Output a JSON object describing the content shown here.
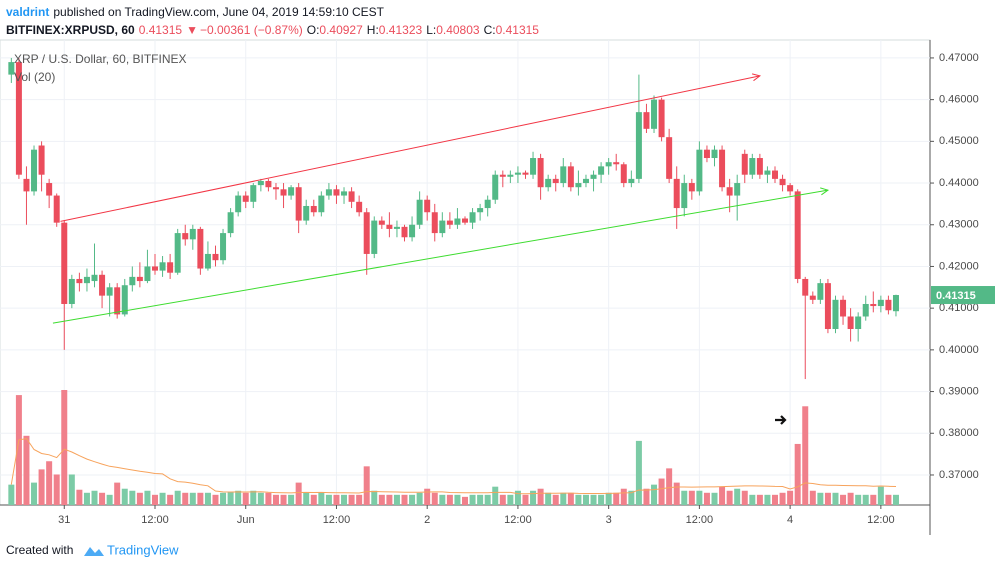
{
  "header": {
    "author": "valdrint",
    "published": "published on TradingView.com, June 04, 2019 14:59:10 CEST",
    "symbol": "BITFINEX:XRPUSD, 60",
    "change_arrow": "▼",
    "change": "−0.00361 (−0.87%)",
    "o_label": "O:",
    "h_label": "H:",
    "l_label": "L:",
    "c_label": "C:"
  },
  "chart_data": {
    "type": "candlestick",
    "title": "XRP / U.S. Dollar, 60, BITFINEX",
    "volume_label": "Vol (20)",
    "up_color": "#53b987",
    "down_color": "#eb4d5c",
    "volume_up_color": "#7ccba6",
    "volume_down_color": "#f0808b",
    "volume_ma_color": "#f7a35c",
    "xlim": [
      -1.5,
      121.5
    ],
    "ylim": [
      0.3628,
      0.4743
    ],
    "grid": true,
    "xticks": [
      {
        "value": 7,
        "label": "31"
      },
      {
        "value": 19,
        "label": "12:00"
      },
      {
        "value": 31,
        "label": "Jun"
      },
      {
        "value": 43,
        "label": "12:00"
      },
      {
        "value": 55,
        "label": "2"
      },
      {
        "value": 67,
        "label": "12:00"
      },
      {
        "value": 79,
        "label": "3"
      },
      {
        "value": 91,
        "label": "12:00"
      },
      {
        "value": 103,
        "label": "4"
      },
      {
        "value": 115,
        "label": "12:00"
      }
    ],
    "yticks": [
      {
        "value": 0.47,
        "label": "0.47000"
      },
      {
        "value": 0.46,
        "label": "0.46000"
      },
      {
        "value": 0.45,
        "label": "0.45000"
      },
      {
        "value": 0.44,
        "label": "0.44000"
      },
      {
        "value": 0.43,
        "label": "0.43000"
      },
      {
        "value": 0.42,
        "label": "0.42000"
      },
      {
        "value": 0.41,
        "label": "0.41000"
      },
      {
        "value": 0.4,
        "label": "0.40000"
      },
      {
        "value": 0.39,
        "label": "0.39000"
      },
      {
        "value": 0.38,
        "label": "0.38000"
      },
      {
        "value": 0.37,
        "label": "0.37000"
      }
    ],
    "candles": [
      [
        0.466,
        0.47,
        0.464,
        0.469,
        20
      ],
      [
        0.469,
        0.47,
        0.441,
        0.442,
        108
      ],
      [
        0.441,
        0.444,
        0.43,
        0.438,
        68
      ],
      [
        0.438,
        0.449,
        0.437,
        0.448,
        22
      ],
      [
        0.449,
        0.45,
        0.438,
        0.442,
        35
      ],
      [
        0.44,
        0.441,
        0.434,
        0.437,
        43
      ],
      [
        0.437,
        0.4375,
        0.4295,
        0.4305,
        30
      ],
      [
        0.4305,
        0.431,
        0.4,
        0.411,
        113
      ],
      [
        0.411,
        0.418,
        0.41,
        0.417,
        30
      ],
      [
        0.417,
        0.4185,
        0.414,
        0.416,
        15
      ],
      [
        0.416,
        0.4195,
        0.414,
        0.4175,
        12
      ],
      [
        0.4165,
        0.4255,
        0.415,
        0.418,
        14
      ],
      [
        0.418,
        0.419,
        0.41,
        0.413,
        12
      ],
      [
        0.413,
        0.416,
        0.408,
        0.415,
        10
      ],
      [
        0.415,
        0.416,
        0.4075,
        0.4085,
        22
      ],
      [
        0.4085,
        0.417,
        0.408,
        0.4155,
        16
      ],
      [
        0.4155,
        0.42,
        0.414,
        0.4175,
        14
      ],
      [
        0.4175,
        0.421,
        0.415,
        0.4165,
        12
      ],
      [
        0.4165,
        0.424,
        0.416,
        0.42,
        14
      ],
      [
        0.42,
        0.423,
        0.418,
        0.419,
        10
      ],
      [
        0.419,
        0.4225,
        0.4175,
        0.421,
        12
      ],
      [
        0.421,
        0.423,
        0.417,
        0.4185,
        10
      ],
      [
        0.4185,
        0.429,
        0.418,
        0.428,
        14
      ],
      [
        0.428,
        0.43,
        0.425,
        0.4265,
        12
      ],
      [
        0.4265,
        0.43,
        0.424,
        0.429,
        12
      ],
      [
        0.429,
        0.4295,
        0.418,
        0.4195,
        12
      ],
      [
        0.4195,
        0.426,
        0.419,
        0.423,
        12
      ],
      [
        0.423,
        0.425,
        0.42,
        0.4215,
        10
      ],
      [
        0.4215,
        0.429,
        0.4205,
        0.428,
        12
      ],
      [
        0.428,
        0.434,
        0.427,
        0.433,
        13
      ],
      [
        0.433,
        0.438,
        0.432,
        0.437,
        14
      ],
      [
        0.437,
        0.438,
        0.434,
        0.4355,
        12
      ],
      [
        0.4355,
        0.44,
        0.434,
        0.4395,
        14
      ],
      [
        0.4395,
        0.441,
        0.438,
        0.4405,
        12
      ],
      [
        0.4405,
        0.441,
        0.438,
        0.439,
        12
      ],
      [
        0.439,
        0.44,
        0.436,
        0.4385,
        10
      ],
      [
        0.4385,
        0.44,
        0.434,
        0.437,
        10
      ],
      [
        0.437,
        0.4395,
        0.436,
        0.439,
        10
      ],
      [
        0.439,
        0.44,
        0.428,
        0.431,
        22
      ],
      [
        0.431,
        0.436,
        0.43,
        0.4345,
        12
      ],
      [
        0.4345,
        0.436,
        0.432,
        0.433,
        10
      ],
      [
        0.433,
        0.438,
        0.432,
        0.437,
        12
      ],
      [
        0.437,
        0.44,
        0.436,
        0.4385,
        10
      ],
      [
        0.4385,
        0.4395,
        0.435,
        0.437,
        10
      ],
      [
        0.437,
        0.439,
        0.435,
        0.438,
        10
      ],
      [
        0.438,
        0.439,
        0.434,
        0.4355,
        10
      ],
      [
        0.4355,
        0.437,
        0.432,
        0.433,
        10
      ],
      [
        0.433,
        0.434,
        0.418,
        0.423,
        38
      ],
      [
        0.423,
        0.432,
        0.422,
        0.431,
        14
      ],
      [
        0.431,
        0.432,
        0.429,
        0.43,
        10
      ],
      [
        0.43,
        0.433,
        0.427,
        0.429,
        10
      ],
      [
        0.429,
        0.431,
        0.427,
        0.4295,
        10
      ],
      [
        0.4295,
        0.43,
        0.426,
        0.427,
        10
      ],
      [
        0.427,
        0.432,
        0.426,
        0.43,
        10
      ],
      [
        0.43,
        0.438,
        0.429,
        0.436,
        12
      ],
      [
        0.436,
        0.437,
        0.431,
        0.433,
        16
      ],
      [
        0.433,
        0.435,
        0.426,
        0.428,
        12
      ],
      [
        0.428,
        0.433,
        0.427,
        0.431,
        10
      ],
      [
        0.431,
        0.433,
        0.429,
        0.43,
        10
      ],
      [
        0.43,
        0.434,
        0.429,
        0.4315,
        10
      ],
      [
        0.4315,
        0.432,
        0.43,
        0.4305,
        8
      ],
      [
        0.4305,
        0.434,
        0.429,
        0.433,
        10
      ],
      [
        0.433,
        0.435,
        0.431,
        0.434,
        10
      ],
      [
        0.434,
        0.437,
        0.432,
        0.436,
        10
      ],
      [
        0.436,
        0.443,
        0.435,
        0.442,
        18
      ],
      [
        0.442,
        0.443,
        0.439,
        0.4415,
        10
      ],
      [
        0.4415,
        0.443,
        0.44,
        0.442,
        10
      ],
      [
        0.442,
        0.444,
        0.44,
        0.4425,
        14
      ],
      [
        0.4425,
        0.443,
        0.441,
        0.442,
        10
      ],
      [
        0.442,
        0.4475,
        0.441,
        0.446,
        14
      ],
      [
        0.446,
        0.447,
        0.436,
        0.439,
        16
      ],
      [
        0.439,
        0.442,
        0.438,
        0.441,
        12
      ],
      [
        0.441,
        0.442,
        0.438,
        0.44,
        10
      ],
      [
        0.44,
        0.446,
        0.439,
        0.444,
        12
      ],
      [
        0.444,
        0.445,
        0.438,
        0.439,
        12
      ],
      [
        0.439,
        0.443,
        0.437,
        0.44,
        10
      ],
      [
        0.44,
        0.442,
        0.439,
        0.441,
        10
      ],
      [
        0.441,
        0.443,
        0.438,
        0.442,
        10
      ],
      [
        0.442,
        0.445,
        0.44,
        0.444,
        10
      ],
      [
        0.444,
        0.446,
        0.442,
        0.445,
        12
      ],
      [
        0.445,
        0.447,
        0.443,
        0.4445,
        12
      ],
      [
        0.4445,
        0.445,
        0.439,
        0.44,
        16
      ],
      [
        0.44,
        0.443,
        0.439,
        0.441,
        14
      ],
      [
        0.441,
        0.466,
        0.44,
        0.457,
        63
      ],
      [
        0.457,
        0.459,
        0.452,
        0.453,
        16
      ],
      [
        0.453,
        0.461,
        0.452,
        0.46,
        20
      ],
      [
        0.46,
        0.4605,
        0.45,
        0.451,
        26
      ],
      [
        0.451,
        0.453,
        0.44,
        0.441,
        36
      ],
      [
        0.441,
        0.444,
        0.429,
        0.434,
        22
      ],
      [
        0.434,
        0.442,
        0.432,
        0.44,
        14
      ],
      [
        0.44,
        0.441,
        0.436,
        0.438,
        14
      ],
      [
        0.438,
        0.45,
        0.437,
        0.448,
        14
      ],
      [
        0.448,
        0.449,
        0.445,
        0.446,
        12
      ],
      [
        0.446,
        0.449,
        0.444,
        0.448,
        12
      ],
      [
        0.448,
        0.449,
        0.438,
        0.439,
        18
      ],
      [
        0.439,
        0.441,
        0.433,
        0.437,
        14
      ],
      [
        0.437,
        0.442,
        0.431,
        0.44,
        16
      ],
      [
        0.447,
        0.448,
        0.44,
        0.442,
        14
      ],
      [
        0.442,
        0.447,
        0.441,
        0.446,
        10
      ],
      [
        0.446,
        0.447,
        0.441,
        0.442,
        10
      ],
      [
        0.442,
        0.444,
        0.44,
        0.443,
        10
      ],
      [
        0.443,
        0.444,
        0.44,
        0.441,
        10
      ],
      [
        0.441,
        0.442,
        0.438,
        0.4395,
        12
      ],
      [
        0.4395,
        0.44,
        0.437,
        0.438,
        14
      ],
      [
        0.438,
        0.4385,
        0.416,
        0.417,
        60
      ],
      [
        0.417,
        0.4175,
        0.393,
        0.413,
        97
      ],
      [
        0.413,
        0.414,
        0.411,
        0.412,
        14
      ],
      [
        0.412,
        0.417,
        0.411,
        0.416,
        12
      ],
      [
        0.416,
        0.417,
        0.404,
        0.405,
        12
      ],
      [
        0.405,
        0.413,
        0.404,
        0.412,
        12
      ],
      [
        0.412,
        0.413,
        0.406,
        0.408,
        10
      ],
      [
        0.408,
        0.41,
        0.402,
        0.405,
        12
      ],
      [
        0.405,
        0.409,
        0.402,
        0.408,
        10
      ],
      [
        0.408,
        0.413,
        0.407,
        0.411,
        10
      ],
      [
        0.411,
        0.414,
        0.409,
        0.4105,
        10
      ],
      [
        0.4105,
        0.413,
        0.409,
        0.412,
        18
      ],
      [
        0.412,
        0.413,
        0.4085,
        0.4095,
        10
      ],
      [
        0.40927,
        0.41323,
        0.40803,
        0.41315,
        10
      ]
    ],
    "trendlines": [
      {
        "color": "#f23645",
        "points": [
          [
            6.5,
            0.4308
          ],
          [
            99,
            0.4657
          ]
        ]
      },
      {
        "color": "#3ddc2f",
        "points": [
          [
            5.5,
            0.4064
          ],
          [
            108,
            0.4383
          ]
        ]
      }
    ]
  },
  "footer": {
    "created": "Created with",
    "brand": "TradingView"
  }
}
